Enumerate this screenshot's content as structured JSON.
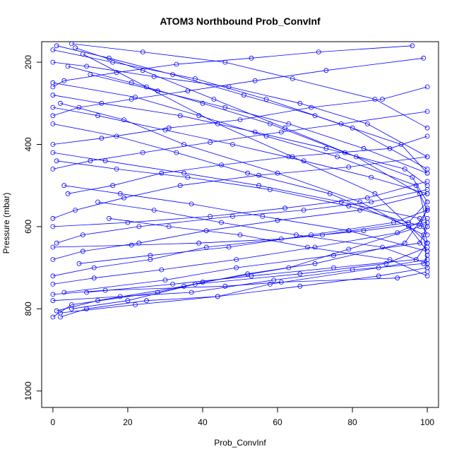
{
  "chart_data": {
    "type": "line",
    "title": "ATOM3 Northbound Prob_ConvInf",
    "xlabel": "Prob_ConvInf",
    "ylabel": "Pressure (mbar)",
    "xlim": [
      -3,
      103
    ],
    "ylim": [
      1040,
      150
    ],
    "y_reversed": true,
    "x_ticks": [
      0,
      20,
      40,
      60,
      80,
      100
    ],
    "y_ticks": [
      200,
      400,
      600,
      800,
      1000
    ],
    "grid": false,
    "legend": "none",
    "series_color": "#0000ff",
    "series": [
      {
        "x": [
          0,
          5,
          28,
          40,
          63,
          79,
          98,
          100
        ],
        "y": [
          820,
          790,
          760,
          735,
          700,
          655,
          600,
          555
        ]
      },
      {
        "x": [
          1,
          12,
          35,
          52,
          70,
          94,
          100
        ],
        "y": [
          805,
          780,
          745,
          715,
          690,
          640,
          560
        ]
      },
      {
        "x": [
          2,
          9,
          25,
          44,
          58,
          87,
          100
        ],
        "y": [
          820,
          800,
          780,
          770,
          740,
          700,
          680
        ]
      },
      {
        "x": [
          0,
          18,
          37,
          59,
          80,
          99,
          100
        ],
        "y": [
          780,
          770,
          760,
          730,
          705,
          690,
          670
        ]
      },
      {
        "x": [
          0,
          14,
          46,
          61,
          92,
          100
        ],
        "y": [
          765,
          755,
          745,
          735,
          725,
          710
        ]
      },
      {
        "x": [
          5,
          20,
          38,
          66,
          89,
          100
        ],
        "y": [
          800,
          780,
          740,
          715,
          690,
          650
        ]
      },
      {
        "x": [
          3,
          30,
          49,
          75,
          98,
          100
        ],
        "y": [
          760,
          730,
          700,
          670,
          640,
          600
        ]
      },
      {
        "x": [
          0,
          11,
          26,
          41,
          72,
          95,
          100
        ],
        "y": [
          720,
          700,
          680,
          650,
          620,
          590,
          540
        ]
      },
      {
        "x": [
          1,
          8,
          23,
          48,
          67,
          85,
          100
        ],
        "y": [
          640,
          620,
          600,
          575,
          560,
          540,
          510
        ]
      },
      {
        "x": [
          0,
          6,
          19,
          34,
          55,
          79,
          100
        ],
        "y": [
          580,
          560,
          530,
          500,
          475,
          455,
          430
        ]
      },
      {
        "x": [
          4,
          16,
          29,
          45,
          63,
          90,
          100
        ],
        "y": [
          520,
          500,
          470,
          450,
          430,
          410,
          380
        ]
      },
      {
        "x": [
          0,
          10,
          24,
          42,
          61,
          77,
          100
        ],
        "y": [
          460,
          440,
          420,
          395,
          370,
          350,
          320
        ]
      },
      {
        "x": [
          0,
          13,
          31,
          50,
          69,
          88,
          100
        ],
        "y": [
          400,
          385,
          360,
          340,
          310,
          290,
          260
        ]
      },
      {
        "x": [
          0,
          7,
          21,
          36,
          54,
          73,
          99
        ],
        "y": [
          330,
          310,
          290,
          270,
          245,
          220,
          190
        ]
      },
      {
        "x": [
          0,
          3,
          17,
          33,
          53,
          71,
          96
        ],
        "y": [
          260,
          245,
          225,
          205,
          190,
          175,
          160
        ]
      },
      {
        "x": [
          0,
          9,
          27,
          47,
          66,
          84,
          100
        ],
        "y": [
          200,
          210,
          235,
          260,
          300,
          350,
          430
        ]
      },
      {
        "x": [
          1,
          15,
          32,
          51,
          70,
          93,
          100
        ],
        "y": [
          160,
          190,
          230,
          280,
          330,
          400,
          470
        ]
      },
      {
        "x": [
          0,
          22,
          39,
          57,
          76,
          97,
          100
        ],
        "y": [
          250,
          285,
          330,
          380,
          430,
          500,
          560
        ]
      },
      {
        "x": [
          6,
          24,
          43,
          62,
          81,
          98,
          100
        ],
        "y": [
          165,
          220,
          290,
          360,
          430,
          520,
          600
        ]
      },
      {
        "x": [
          2,
          19,
          35,
          60,
          82,
          99,
          100
        ],
        "y": [
          300,
          340,
          400,
          470,
          540,
          620,
          700
        ]
      },
      {
        "x": [
          8,
          25,
          44,
          64,
          86,
          100
        ],
        "y": [
          180,
          260,
          350,
          430,
          520,
          640
        ]
      },
      {
        "x": [
          0,
          17,
          33,
          52,
          74,
          95,
          100
        ],
        "y": [
          350,
          380,
          420,
          470,
          520,
          600,
          660
        ]
      },
      {
        "x": [
          4,
          21,
          40,
          58,
          78,
          96,
          100
        ],
        "y": [
          210,
          250,
          300,
          350,
          420,
          480,
          540
        ]
      },
      {
        "x": [
          0,
          12,
          30,
          48,
          67,
          85,
          100
        ],
        "y": [
          310,
          330,
          365,
          400,
          440,
          480,
          520
        ]
      },
      {
        "x": [
          10,
          28,
          46,
          63,
          83,
          100
        ],
        "y": [
          230,
          270,
          310,
          350,
          410,
          470
        ]
      },
      {
        "x": [
          0,
          14,
          35,
          55,
          77,
          98,
          100
        ],
        "y": [
          420,
          440,
          470,
          500,
          540,
          580,
          620
        ]
      },
      {
        "x": [
          3,
          18,
          37,
          56,
          79,
          100
        ],
        "y": [
          500,
          520,
          545,
          575,
          610,
          660
        ]
      },
      {
        "x": [
          12,
          27,
          45,
          65,
          88,
          100
        ],
        "y": [
          540,
          560,
          590,
          620,
          650,
          690
        ]
      },
      {
        "x": [
          0,
          8,
          23,
          41,
          60,
          82,
          100
        ],
        "y": [
          680,
          660,
          640,
          610,
          585,
          560,
          520
        ]
      },
      {
        "x": [
          15,
          31,
          50,
          68,
          90,
          100
        ],
        "y": [
          580,
          600,
          620,
          650,
          680,
          720
        ]
      },
      {
        "x": [
          0,
          20,
          42,
          62,
          84,
          100
        ],
        "y": [
          600,
          590,
          575,
          555,
          530,
          490
        ]
      },
      {
        "x": [
          7,
          26,
          47,
          69,
          91,
          100
        ],
        "y": [
          690,
          670,
          650,
          620,
          590,
          560
        ]
      },
      {
        "x": [
          0,
          11,
          29,
          49,
          70,
          92,
          100
        ],
        "y": [
          740,
          725,
          705,
          680,
          650,
          615,
          580
        ]
      },
      {
        "x": [
          2,
          22,
          44,
          66,
          87,
          100
        ],
        "y": [
          810,
          790,
          770,
          745,
          720,
          700
        ]
      },
      {
        "x": [
          9,
          32,
          53,
          75,
          97,
          100
        ],
        "y": [
          760,
          740,
          720,
          700,
          680,
          640
        ]
      },
      {
        "x": [
          0,
          16,
          38,
          57,
          80,
          100
        ],
        "y": [
          170,
          200,
          240,
          290,
          360,
          460
        ]
      },
      {
        "x": [
          5,
          24,
          46,
          64,
          86,
          100
        ],
        "y": [
          155,
          175,
          200,
          240,
          290,
          360
        ]
      },
      {
        "x": [
          0,
          13,
          34,
          54,
          73,
          94,
          100
        ],
        "y": [
          280,
          300,
          330,
          370,
          410,
          460,
          500
        ]
      },
      {
        "x": [
          1,
          17,
          36,
          58,
          79,
          99,
          100
        ],
        "y": [
          440,
          460,
          480,
          510,
          550,
          600,
          640
        ]
      },
      {
        "x": [
          0,
          21,
          39,
          61,
          83,
          100
        ],
        "y": [
          650,
          645,
          640,
          630,
          610,
          590
        ]
      }
    ]
  }
}
